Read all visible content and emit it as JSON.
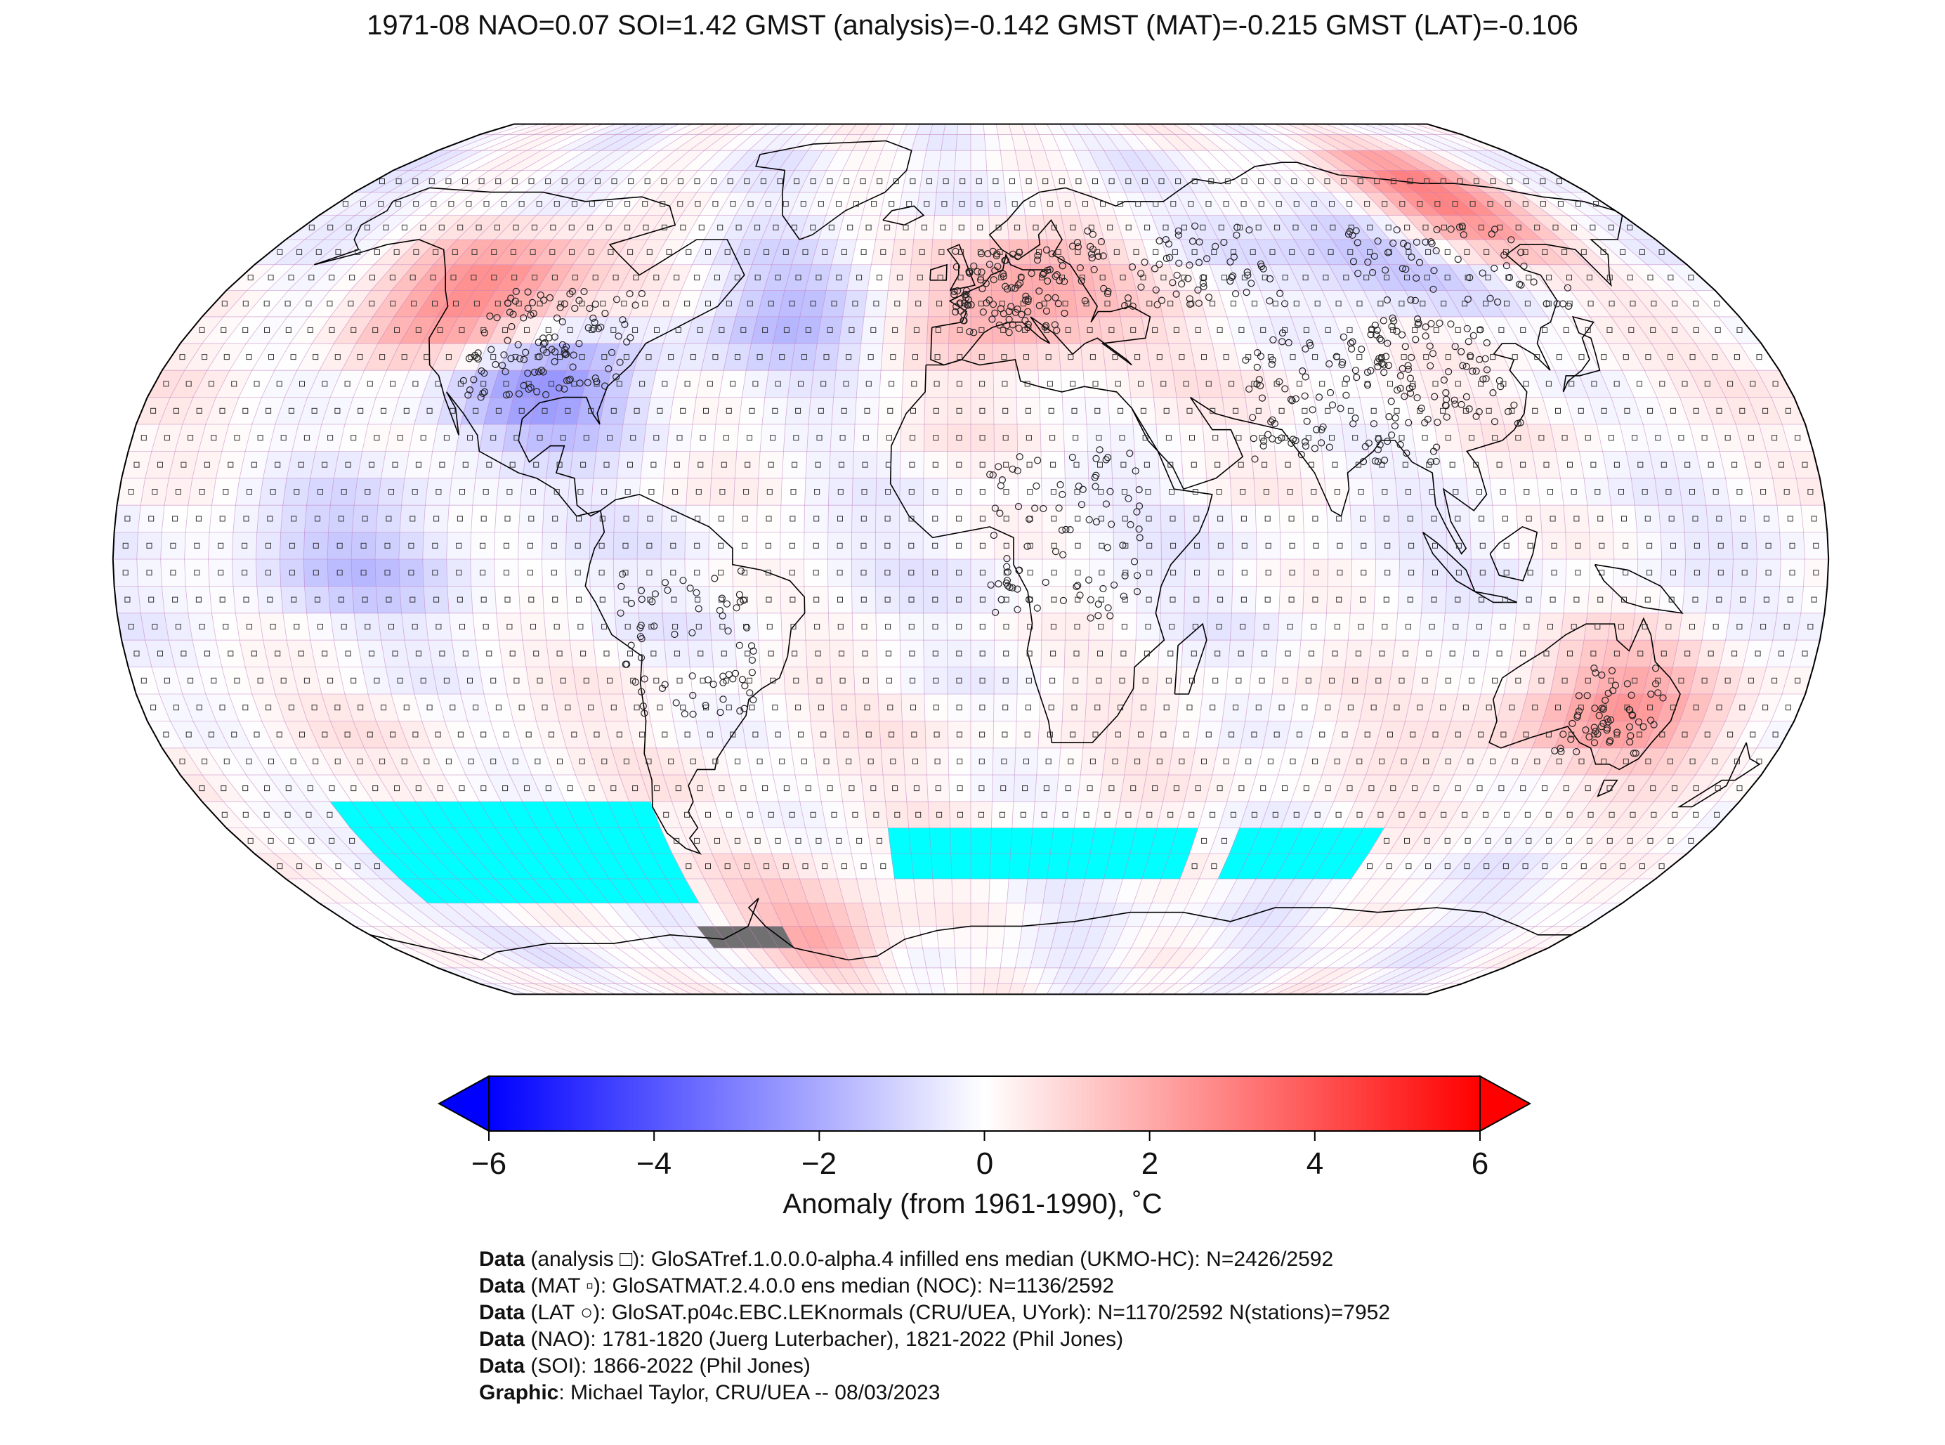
{
  "title": "1971-08 NAO=0.07 SOI=1.42 GMST (analysis)=-0.142 GMST (MAT)=-0.215 GMST (LAT)=-0.106",
  "colors": {
    "cold_extreme": "#0000ff",
    "neutral": "#ffffff",
    "warm_extreme": "#ff0000",
    "missing_cells": "#00ffff",
    "masked_land": "#707070",
    "grid_lines": "#c080c0",
    "coastline": "#000000"
  },
  "colorbar": {
    "ticks": [
      "−6",
      "−4",
      "−2",
      "0",
      "2",
      "4",
      "6"
    ],
    "tick_values": [
      -6,
      -4,
      -2,
      0,
      2,
      4,
      6
    ],
    "label": "Anomaly (from 1961-1990), ˚C",
    "extend": "both"
  },
  "credits": [
    {
      "head": "Data",
      "text": " (analysis □): GloSATref.1.0.0.0-alpha.4 infilled ens median (UKMO-HC): N=2426/2592"
    },
    {
      "head": "Data",
      "text": " (MAT ▫): GloSATMAT.2.4.0.0 ens median (NOC): N=1136/2592"
    },
    {
      "head": "Data",
      "text": " (LAT ○): GloSAT.p04c.EBC.LEKnormals (CRU/UEA, UYork): N=1170/2592 N(stations)=7952"
    },
    {
      "head": "Data",
      "text": " (NAO): 1781-1820 (Juerg Luterbacher), 1821-2022 (Phil Jones)"
    },
    {
      "head": "Data",
      "text": " (SOI): 1866-2022 (Phil Jones)"
    },
    {
      "head": "Graphic",
      "text": ": Michael Taylor, CRU/UEA -- 08/03/2023"
    }
  ],
  "map": {
    "projection": "Robinson",
    "grid_resolution_deg": 5,
    "missing_regions": [
      {
        "name": "south-pacific-gap",
        "lat_range": [
          -65,
          -45
        ],
        "lon_range": [
          -150,
          -75
        ]
      },
      {
        "name": "south-atlantic-indian-gap",
        "lat_range": [
          -60,
          -50
        ],
        "lon_range": [
          -20,
          55
        ]
      },
      {
        "name": "south-indian-gap",
        "lat_range": [
          -60,
          -50
        ],
        "lon_range": [
          65,
          100
        ]
      }
    ],
    "warm_regions": [
      {
        "name": "eastern-siberia",
        "lat": 68,
        "lon": 130,
        "anomaly": 3.5
      },
      {
        "name": "western-north-america",
        "lat": 50,
        "lon": -115,
        "anomaly": 3.0
      },
      {
        "name": "central-europe",
        "lat": 50,
        "lon": 12,
        "anomaly": 2.5
      },
      {
        "name": "eastern-australia",
        "lat": -27,
        "lon": 140,
        "anomaly": 2.0
      },
      {
        "name": "weddell-sea-sector",
        "lat": -70,
        "lon": -45,
        "anomaly": 2.0
      }
    ],
    "cold_regions": [
      {
        "name": "south-central-usa",
        "lat": 32,
        "lon": -95,
        "anomaly": -2.5
      },
      {
        "name": "central-siberia",
        "lat": 58,
        "lon": 105,
        "anomaly": -2.0
      },
      {
        "name": "north-atlantic",
        "lat": 45,
        "lon": -40,
        "anomaly": -1.5
      },
      {
        "name": "equatorial-pacific",
        "lat": 0,
        "lon": -130,
        "anomaly": -1.0
      }
    ]
  }
}
